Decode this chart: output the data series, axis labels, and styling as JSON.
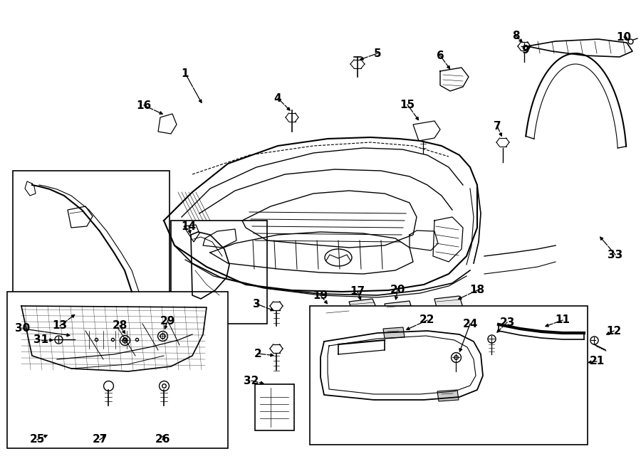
{
  "bg_color": "#ffffff",
  "line_color": "#000000",
  "text_color": "#000000",
  "figsize": [
    9.0,
    6.62
  ],
  "dpi": 100
}
